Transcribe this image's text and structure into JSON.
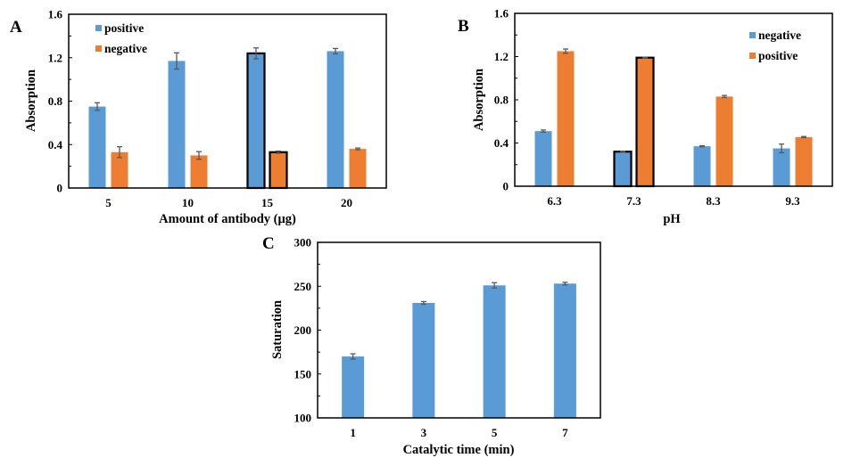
{
  "colors": {
    "blue": "#5b9bd5",
    "orange": "#ed7d31",
    "error": "#595959",
    "axis": "#000000"
  },
  "chart_data": [
    {
      "id": "A",
      "type": "bar",
      "panel_label": "A",
      "title": "",
      "xlabel": "Amount of antibody (μg)",
      "ylabel": "Absorption",
      "ylim": [
        0,
        1.6
      ],
      "yticks": [
        0,
        0.4,
        0.8,
        1.2,
        1.6
      ],
      "ytick_labels": [
        "0",
        "0.4",
        "0.8",
        "1.2",
        "1.6"
      ],
      "categories": [
        "5",
        "10",
        "15",
        "20"
      ],
      "legend_position": "top-left",
      "highlighted_category": "15",
      "series": [
        {
          "name": "positive",
          "color": "blue",
          "values": [
            0.75,
            1.17,
            1.24,
            1.26
          ],
          "errors": [
            0.035,
            0.075,
            0.05,
            0.025
          ]
        },
        {
          "name": "negative",
          "color": "orange",
          "values": [
            0.33,
            0.3,
            0.33,
            0.36
          ],
          "errors": [
            0.05,
            0.035,
            0.01,
            0.008
          ]
        }
      ]
    },
    {
      "id": "B",
      "type": "bar",
      "panel_label": "B",
      "title": "",
      "xlabel": "pH",
      "ylabel": "Absorption",
      "ylim": [
        0,
        1.6
      ],
      "yticks": [
        0,
        0.4,
        0.8,
        1.2,
        1.6
      ],
      "ytick_labels": [
        "0",
        "0.4",
        "0.8",
        "1.2",
        "1.6"
      ],
      "categories": [
        "6.3",
        "7.3",
        "8.3",
        "9.3"
      ],
      "legend_position": "top-right",
      "highlighted_category": "7.3",
      "series": [
        {
          "name": "negative",
          "color": "blue",
          "values": [
            0.51,
            0.32,
            0.37,
            0.35
          ],
          "errors": [
            0.01,
            0.003,
            0.005,
            0.04
          ]
        },
        {
          "name": "positive",
          "color": "orange",
          "values": [
            1.25,
            1.19,
            0.83,
            0.455
          ],
          "errors": [
            0.02,
            0.003,
            0.01,
            0.005
          ]
        }
      ]
    },
    {
      "id": "C",
      "type": "bar",
      "panel_label": "C",
      "title": "",
      "xlabel": "Catalytic time (min)",
      "ylabel": "Saturation",
      "ylim": [
        100,
        300
      ],
      "yticks": [
        100,
        150,
        200,
        250,
        300
      ],
      "ytick_labels": [
        "100",
        "150",
        "200",
        "250",
        "300"
      ],
      "categories": [
        "1",
        "3",
        "5",
        "7"
      ],
      "legend_position": "none",
      "highlighted_category": null,
      "series": [
        {
          "name": "Saturation",
          "color": "blue",
          "values": [
            170,
            231,
            251,
            253
          ],
          "errors": [
            3,
            1.5,
            3,
            1.5
          ]
        }
      ]
    }
  ]
}
